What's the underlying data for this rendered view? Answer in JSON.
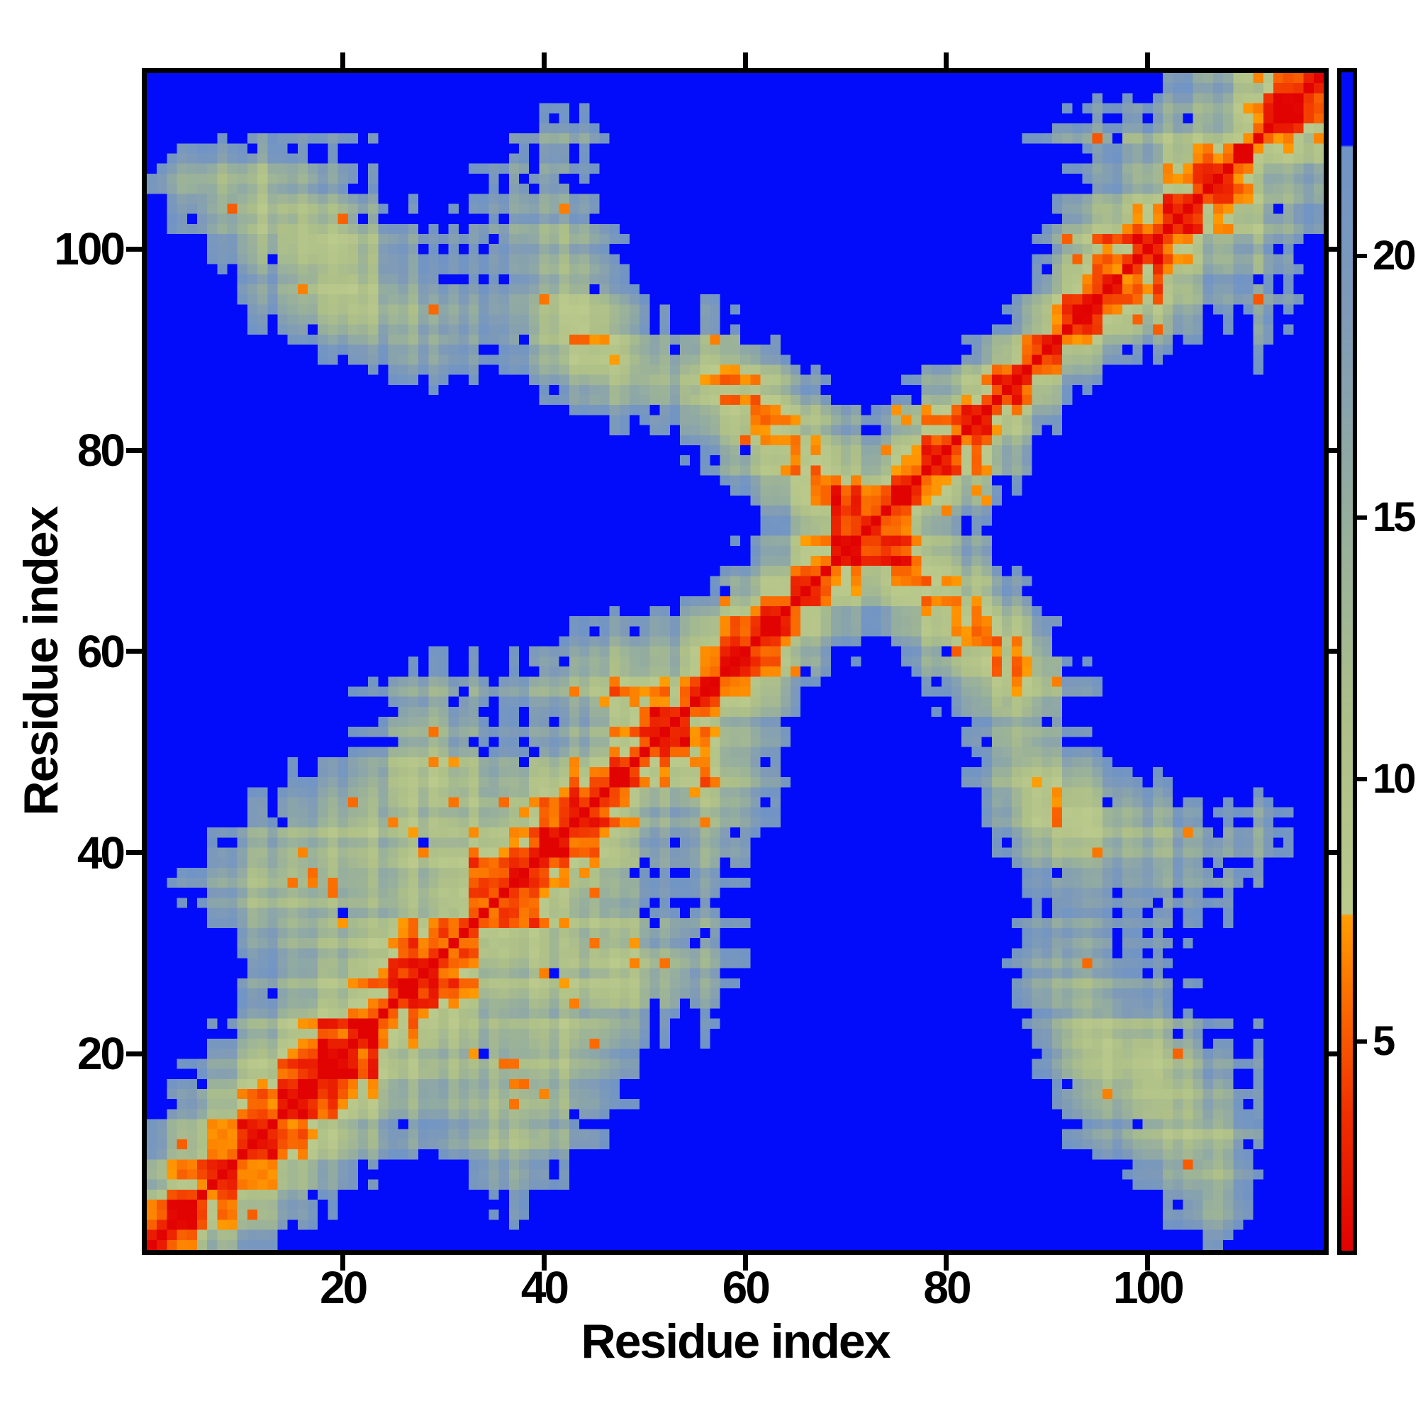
{
  "figure": {
    "background_color": "#ffffff",
    "xlabel": "Residue index",
    "ylabel": "Residue index"
  },
  "chart_data": {
    "type": "heatmap",
    "title": "",
    "xlabel": "Residue index",
    "ylabel": "Residue index",
    "n_residues": 117,
    "x_range": [
      1,
      117
    ],
    "y_range": [
      1,
      117
    ],
    "x_ticks": [
      20,
      40,
      60,
      80,
      100
    ],
    "y_ticks": [
      20,
      40,
      60,
      80,
      100
    ],
    "grid": false,
    "legend_position": "none",
    "colorbar": {
      "position": "right",
      "ticks": [
        5,
        10,
        15,
        20
      ],
      "vmin": 1.0,
      "vmax": 23.5,
      "over_cutoff": 22.1,
      "over_color_rgb": [
        2,
        12,
        250
      ]
    },
    "colormap_stops": [
      [
        1.0,
        225,
        2,
        2
      ],
      [
        3.6,
        240,
        48,
        0
      ],
      [
        5.6,
        250,
        104,
        0
      ],
      [
        7.4,
        255,
        158,
        2
      ],
      [
        7.41,
        187,
        202,
        140
      ],
      [
        11.0,
        174,
        192,
        136
      ],
      [
        15.0,
        150,
        174,
        158
      ],
      [
        19.0,
        126,
        154,
        184
      ],
      [
        22.1,
        112,
        148,
        198
      ]
    ],
    "matrix_model": {
      "comment_visible_pattern": "red self-diagonal with orange flanking band, antiparallel hairpin cross centered near residue 72, sage/steel plaid mid-range texture, pure blue where distance exceeds cutoff, scattered orange contact speckles and isolated blue cells",
      "waypoints": [
        [
          1,
          -34,
          -6,
          6
        ],
        [
          6,
          -26,
          -8,
          2
        ],
        [
          12,
          -16,
          -10,
          -2
        ],
        [
          20,
          -6,
          -12,
          -6
        ],
        [
          28,
          4,
          -8,
          2
        ],
        [
          36,
          -8,
          -2,
          4
        ],
        [
          44,
          0,
          2,
          -4
        ],
        [
          52,
          12,
          2,
          6
        ],
        [
          58,
          8,
          12,
          2
        ],
        [
          65,
          12,
          26,
          4
        ],
        [
          72,
          16,
          40,
          2
        ],
        [
          79,
          15,
          27,
          -1
        ],
        [
          86,
          12,
          14,
          -4
        ],
        [
          93,
          0,
          -2,
          -12
        ],
        [
          100,
          -10,
          -6,
          -14
        ],
        [
          108,
          -22,
          2,
          -10
        ],
        [
          112,
          -14,
          10,
          -16
        ],
        [
          117,
          -22,
          14,
          -20
        ]
      ],
      "helix_wobble_amplitude": 1.7,
      "helix_wobble_period": 3.6,
      "jitter_amplitude": 1.2,
      "row_bias_amplitude": 1.25,
      "jitter_seed": 99,
      "speckles": {
        "seed": 1234,
        "orange_density": 0.035,
        "orange_range": [
          8.5,
          15.0
        ],
        "orange_value_min": 4.6,
        "orange_value_span": 2.6,
        "blue_density": 0.05,
        "blue_range": [
          15.5,
          22.0
        ]
      }
    }
  }
}
